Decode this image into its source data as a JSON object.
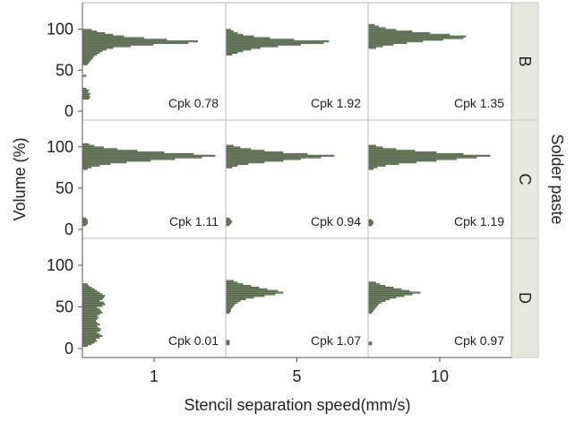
{
  "chart_data": {
    "type": "bar",
    "orientation": "horizontal-histogram-facet-grid",
    "xlabel": "Stencil separation speed(mm/s)",
    "ylabel": "Volume (%)",
    "row_strip_label": "Solder paste",
    "ylim": [
      0,
      128
    ],
    "y_ticks": [
      "0",
      "50",
      "100"
    ],
    "columns": [
      "1",
      "5",
      "10"
    ],
    "rows": [
      "B",
      "C",
      "D"
    ],
    "grid": false,
    "bar_color": "#7b8d6f",
    "strip_color": "#e7e7e0",
    "bin_width": 2,
    "panels": [
      {
        "row": "B",
        "col": "1",
        "cpk": "Cpk 0.78",
        "bins": [
          [
            15,
            0.04
          ],
          [
            17,
            0.05
          ],
          [
            19,
            0.04
          ],
          [
            21,
            0.05
          ],
          [
            23,
            0.03
          ],
          [
            25,
            0.04
          ],
          [
            27,
            0.02
          ],
          [
            43,
            0.02
          ],
          [
            57,
            0.03
          ],
          [
            59,
            0.04
          ],
          [
            61,
            0.05
          ],
          [
            63,
            0.06
          ],
          [
            65,
            0.07
          ],
          [
            67,
            0.08
          ],
          [
            69,
            0.1
          ],
          [
            71,
            0.12
          ],
          [
            73,
            0.14
          ],
          [
            75,
            0.17
          ],
          [
            77,
            0.22
          ],
          [
            79,
            0.35
          ],
          [
            81,
            0.52
          ],
          [
            83,
            0.78
          ],
          [
            85,
            0.85
          ],
          [
            87,
            0.62
          ],
          [
            89,
            0.45
          ],
          [
            91,
            0.3
          ],
          [
            93,
            0.22
          ],
          [
            95,
            0.16
          ],
          [
            97,
            0.1
          ],
          [
            99,
            0.06
          ]
        ]
      },
      {
        "row": "B",
        "col": "5",
        "cpk": "Cpk 1.92",
        "bins": [
          [
            69,
            0.04
          ],
          [
            71,
            0.08
          ],
          [
            73,
            0.12
          ],
          [
            75,
            0.18
          ],
          [
            77,
            0.25
          ],
          [
            79,
            0.38
          ],
          [
            81,
            0.55
          ],
          [
            83,
            0.72
          ],
          [
            85,
            0.76
          ],
          [
            87,
            0.5
          ],
          [
            89,
            0.32
          ],
          [
            91,
            0.2
          ],
          [
            93,
            0.12
          ],
          [
            95,
            0.08
          ],
          [
            97,
            0.05
          ],
          [
            99,
            0.03
          ]
        ]
      },
      {
        "row": "B",
        "col": "10",
        "cpk": "Cpk 1.35",
        "bins": [
          [
            77,
            0.05
          ],
          [
            79,
            0.1
          ],
          [
            81,
            0.18
          ],
          [
            83,
            0.28
          ],
          [
            85,
            0.4
          ],
          [
            87,
            0.55
          ],
          [
            89,
            0.7
          ],
          [
            91,
            0.72
          ],
          [
            93,
            0.6
          ],
          [
            95,
            0.45
          ],
          [
            97,
            0.32
          ],
          [
            99,
            0.2
          ],
          [
            101,
            0.12
          ],
          [
            103,
            0.07
          ],
          [
            105,
            0.04
          ]
        ]
      },
      {
        "row": "C",
        "col": "1",
        "cpk": "Cpk 1.11",
        "bins": [
          [
            5,
            0.02
          ],
          [
            7,
            0.03
          ],
          [
            9,
            0.03
          ],
          [
            11,
            0.03
          ],
          [
            13,
            0.02
          ],
          [
            73,
            0.03
          ],
          [
            75,
            0.06
          ],
          [
            77,
            0.12
          ],
          [
            79,
            0.2
          ],
          [
            81,
            0.32
          ],
          [
            83,
            0.5
          ],
          [
            85,
            0.68
          ],
          [
            87,
            0.88
          ],
          [
            89,
            0.98
          ],
          [
            91,
            0.82
          ],
          [
            93,
            0.6
          ],
          [
            95,
            0.4
          ],
          [
            97,
            0.25
          ],
          [
            99,
            0.15
          ],
          [
            101,
            0.08
          ],
          [
            103,
            0.04
          ]
        ]
      },
      {
        "row": "C",
        "col": "5",
        "cpk": "Cpk 0.94",
        "bins": [
          [
            5,
            0.02
          ],
          [
            7,
            0.03
          ],
          [
            9,
            0.04
          ],
          [
            11,
            0.03
          ],
          [
            13,
            0.02
          ],
          [
            75,
            0.04
          ],
          [
            77,
            0.08
          ],
          [
            79,
            0.16
          ],
          [
            81,
            0.28
          ],
          [
            83,
            0.42
          ],
          [
            85,
            0.55
          ],
          [
            87,
            0.7
          ],
          [
            89,
            0.8
          ],
          [
            91,
            0.6
          ],
          [
            93,
            0.42
          ],
          [
            95,
            0.28
          ],
          [
            97,
            0.18
          ],
          [
            99,
            0.1
          ],
          [
            101,
            0.05
          ]
        ]
      },
      {
        "row": "C",
        "col": "10",
        "cpk": "Cpk 1.19",
        "bins": [
          [
            5,
            0.02
          ],
          [
            7,
            0.03
          ],
          [
            9,
            0.03
          ],
          [
            11,
            0.02
          ],
          [
            73,
            0.03
          ],
          [
            75,
            0.06
          ],
          [
            77,
            0.12
          ],
          [
            79,
            0.22
          ],
          [
            81,
            0.35
          ],
          [
            83,
            0.5
          ],
          [
            85,
            0.65
          ],
          [
            87,
            0.8
          ],
          [
            89,
            0.9
          ],
          [
            91,
            0.7
          ],
          [
            93,
            0.5
          ],
          [
            95,
            0.34
          ],
          [
            97,
            0.2
          ],
          [
            99,
            0.1
          ],
          [
            101,
            0.05
          ]
        ]
      },
      {
        "row": "D",
        "col": "1",
        "cpk": "Cpk 0.01",
        "bins": [
          [
            3,
            0.03
          ],
          [
            5,
            0.06
          ],
          [
            7,
            0.08
          ],
          [
            9,
            0.1
          ],
          [
            11,
            0.09
          ],
          [
            13,
            0.12
          ],
          [
            15,
            0.14
          ],
          [
            17,
            0.12
          ],
          [
            19,
            0.1
          ],
          [
            21,
            0.12
          ],
          [
            23,
            0.13
          ],
          [
            25,
            0.11
          ],
          [
            27,
            0.1
          ],
          [
            29,
            0.12
          ],
          [
            31,
            0.1
          ],
          [
            33,
            0.09
          ],
          [
            35,
            0.1
          ],
          [
            37,
            0.11
          ],
          [
            39,
            0.1
          ],
          [
            41,
            0.12
          ],
          [
            43,
            0.14
          ],
          [
            45,
            0.13
          ],
          [
            47,
            0.12
          ],
          [
            49,
            0.1
          ],
          [
            51,
            0.14
          ],
          [
            53,
            0.16
          ],
          [
            55,
            0.15
          ],
          [
            57,
            0.12
          ],
          [
            59,
            0.14
          ],
          [
            61,
            0.15
          ],
          [
            63,
            0.16
          ],
          [
            65,
            0.14
          ],
          [
            67,
            0.12
          ],
          [
            69,
            0.1
          ],
          [
            71,
            0.08
          ],
          [
            73,
            0.06
          ],
          [
            75,
            0.04
          ],
          [
            77,
            0.03
          ]
        ]
      },
      {
        "row": "D",
        "col": "5",
        "cpk": "Cpk 1.07",
        "bins": [
          [
            5,
            0.02
          ],
          [
            7,
            0.02
          ],
          [
            9,
            0.02
          ],
          [
            43,
            0.02
          ],
          [
            45,
            0.03
          ],
          [
            47,
            0.03
          ],
          [
            49,
            0.04
          ],
          [
            51,
            0.05
          ],
          [
            53,
            0.06
          ],
          [
            55,
            0.08
          ],
          [
            57,
            0.1
          ],
          [
            59,
            0.14
          ],
          [
            61,
            0.2
          ],
          [
            63,
            0.28
          ],
          [
            65,
            0.36
          ],
          [
            67,
            0.42
          ],
          [
            69,
            0.38
          ],
          [
            71,
            0.3
          ],
          [
            73,
            0.24
          ],
          [
            75,
            0.18
          ],
          [
            77,
            0.12
          ],
          [
            79,
            0.08
          ],
          [
            81,
            0.05
          ]
        ]
      },
      {
        "row": "D",
        "col": "10",
        "cpk": "Cpk 0.97",
        "bins": [
          [
            5,
            0.02
          ],
          [
            7,
            0.02
          ],
          [
            43,
            0.02
          ],
          [
            45,
            0.03
          ],
          [
            47,
            0.04
          ],
          [
            49,
            0.05
          ],
          [
            51,
            0.06
          ],
          [
            53,
            0.07
          ],
          [
            55,
            0.09
          ],
          [
            57,
            0.12
          ],
          [
            59,
            0.15
          ],
          [
            61,
            0.2
          ],
          [
            63,
            0.26
          ],
          [
            65,
            0.32
          ],
          [
            67,
            0.38
          ],
          [
            69,
            0.3
          ],
          [
            71,
            0.24
          ],
          [
            73,
            0.18
          ],
          [
            75,
            0.12
          ],
          [
            77,
            0.08
          ],
          [
            79,
            0.05
          ]
        ]
      }
    ]
  }
}
